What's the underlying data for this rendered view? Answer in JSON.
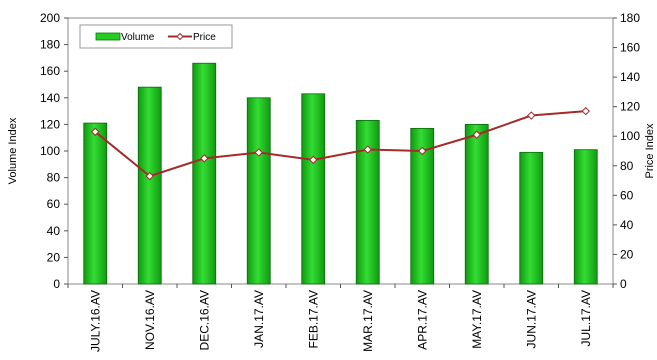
{
  "chart_data": {
    "type": "bar",
    "title": "",
    "categories": [
      "JULY.16.AV",
      "NOV.16.AV",
      "DEC.16.AV",
      "JAN.17.AV",
      "FEB.17.AV",
      "MAR.17.AV",
      "APR.17.AV",
      "MAY.17.AV",
      "JUN.17.AV",
      "JUL.17.AV"
    ],
    "series": [
      {
        "name": "Volume",
        "type": "bar",
        "axis": "left",
        "color": "#22cc22",
        "values": [
          121,
          148,
          166,
          140,
          143,
          123,
          117,
          120,
          99,
          101
        ]
      },
      {
        "name": "Price",
        "type": "line",
        "axis": "right",
        "color": "#a52a2a",
        "values": [
          103,
          73,
          85,
          89,
          84,
          91,
          90,
          101,
          114,
          117
        ]
      }
    ],
    "ylabel": "Volume Index",
    "y2label": "Price Index",
    "ylim": [
      0,
      200
    ],
    "y2lim": [
      0,
      180
    ],
    "yticks": [
      0,
      20,
      40,
      60,
      80,
      100,
      120,
      140,
      160,
      180,
      200
    ],
    "y2ticks": [
      0,
      20,
      40,
      60,
      80,
      100,
      120,
      140,
      160,
      180
    ],
    "grid": false,
    "legend": "top-left"
  }
}
